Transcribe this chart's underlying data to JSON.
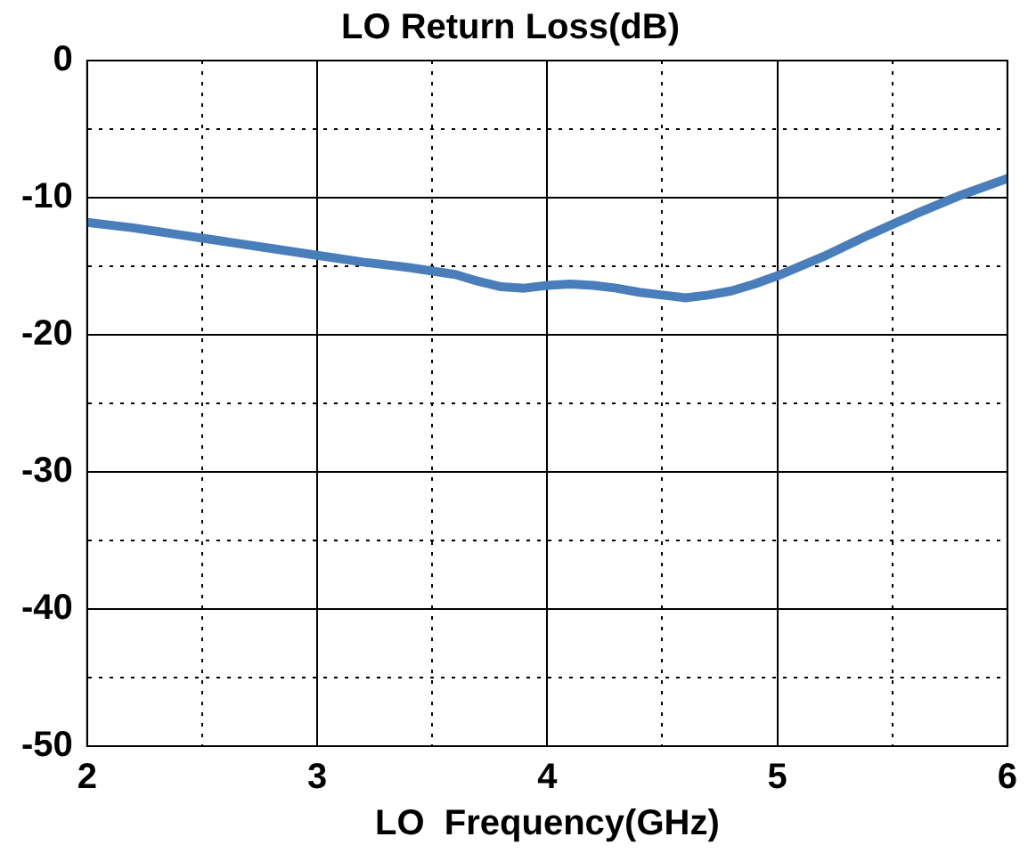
{
  "chart_data": {
    "type": "line",
    "title": "LO Return Loss(dB)",
    "xlabel": "LO  Frequency(GHz)",
    "x": [
      2,
      2.2,
      2.4,
      2.6,
      2.8,
      3,
      3.2,
      3.4,
      3.6,
      3.7,
      3.8,
      3.9,
      4,
      4.1,
      4.2,
      4.3,
      4.4,
      4.5,
      4.6,
      4.7,
      4.8,
      4.9,
      5,
      5.2,
      5.4,
      5.6,
      5.8,
      6
    ],
    "series": [
      {
        "color": "#4a7ebb",
        "values": [
          -11.8,
          -12.2,
          -12.7,
          -13.2,
          -13.7,
          -14.2,
          -14.7,
          -15.1,
          -15.6,
          -16.1,
          -16.5,
          -16.6,
          -16.4,
          -16.3,
          -16.4,
          -16.6,
          -16.9,
          -17.1,
          -17.3,
          -17.1,
          -16.8,
          -16.3,
          -15.7,
          -14.3,
          -12.7,
          -11.2,
          -9.8,
          -8.6
        ]
      }
    ],
    "xlim": [
      2,
      6
    ],
    "xticks": [
      2,
      {
        "value": 2.5,
        "label": null
      },
      3,
      {
        "value": 3.5,
        "label": null
      },
      4,
      {
        "value": 4.5,
        "label": null
      },
      5,
      {
        "value": 5.5,
        "label": null
      },
      6
    ],
    "ylim": [
      -50,
      0
    ],
    "yticks": [
      -50,
      {
        "value": -45,
        "label": null
      },
      -40,
      {
        "value": -35,
        "label": null
      },
      -30,
      {
        "value": -25,
        "label": null
      },
      -20,
      {
        "value": -15,
        "label": null
      },
      -10,
      {
        "value": -5,
        "label": null
      },
      0
    ],
    "grid": true,
    "legend": false,
    "marker": "none",
    "line_style": "solid"
  }
}
